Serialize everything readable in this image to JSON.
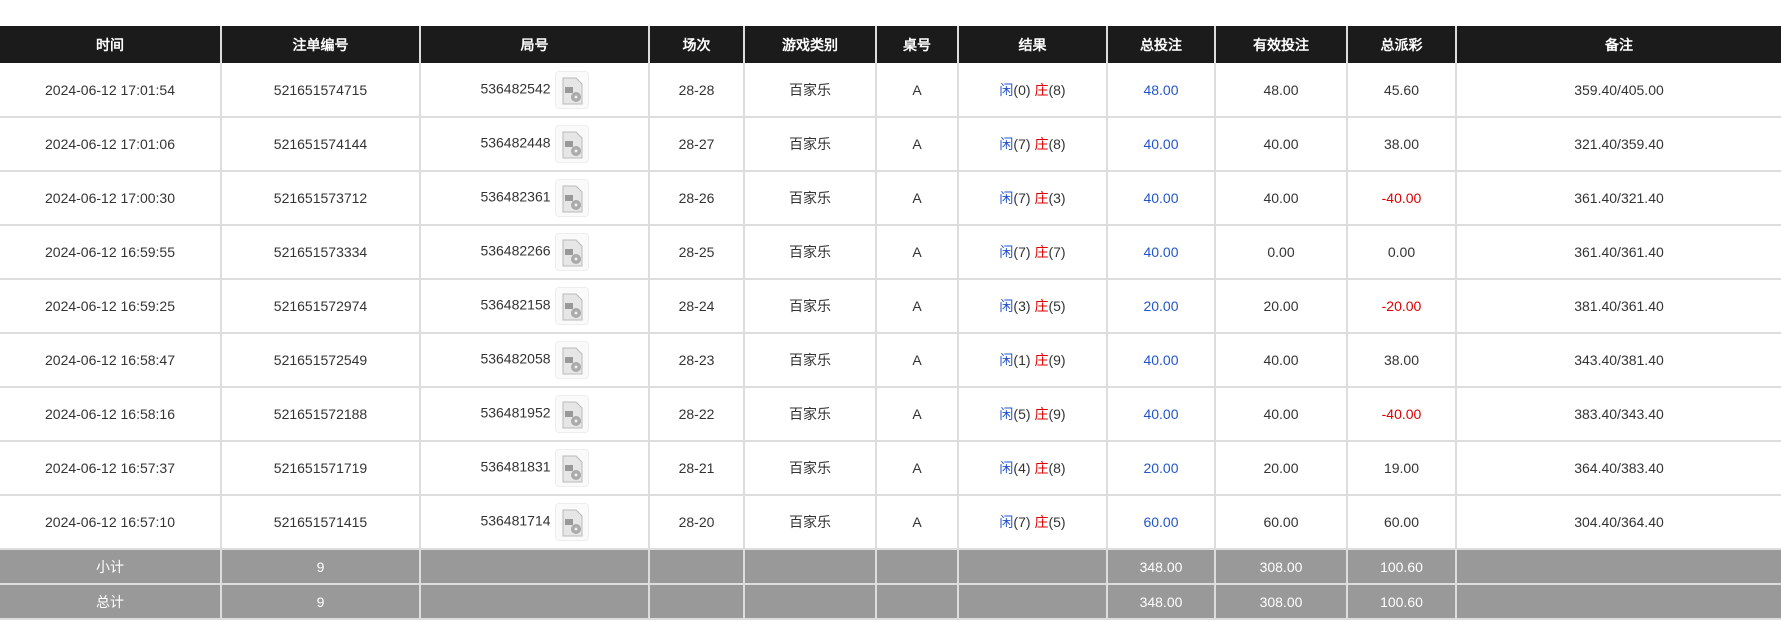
{
  "headers": [
    "时间",
    "注单编号",
    "局号",
    "场次",
    "游戏类别",
    "桌号",
    "结果",
    "总投注",
    "有效投注",
    "总派彩",
    "备注"
  ],
  "colors": {
    "header_bg": "#1b1b1b",
    "player": "#2255cc",
    "banker": "#dd0000",
    "summary_bg": "#999999"
  },
  "rows": [
    {
      "time": "2024-06-12 17:01:54",
      "bet_id": "521651574715",
      "round": "536482542",
      "shoe": "28-28",
      "game": "百家乐",
      "table": "A",
      "p_label": "闲",
      "p": "(0)",
      "b_label": "庄",
      "b": "(8)",
      "total": "48.00",
      "valid": "48.00",
      "payout": "45.60",
      "payout_neg": false,
      "note": "359.40/405.00"
    },
    {
      "time": "2024-06-12 17:01:06",
      "bet_id": "521651574144",
      "round": "536482448",
      "shoe": "28-27",
      "game": "百家乐",
      "table": "A",
      "p_label": "闲",
      "p": "(7)",
      "b_label": "庄",
      "b": "(8)",
      "total": "40.00",
      "valid": "40.00",
      "payout": "38.00",
      "payout_neg": false,
      "note": "321.40/359.40"
    },
    {
      "time": "2024-06-12 17:00:30",
      "bet_id": "521651573712",
      "round": "536482361",
      "shoe": "28-26",
      "game": "百家乐",
      "table": "A",
      "p_label": "闲",
      "p": "(7)",
      "b_label": "庄",
      "b": "(3)",
      "total": "40.00",
      "valid": "40.00",
      "payout": "-40.00",
      "payout_neg": true,
      "note": "361.40/321.40"
    },
    {
      "time": "2024-06-12 16:59:55",
      "bet_id": "521651573334",
      "round": "536482266",
      "shoe": "28-25",
      "game": "百家乐",
      "table": "A",
      "p_label": "闲",
      "p": "(7)",
      "b_label": "庄",
      "b": "(7)",
      "total": "40.00",
      "valid": "0.00",
      "payout": "0.00",
      "payout_neg": false,
      "note": "361.40/361.40"
    },
    {
      "time": "2024-06-12 16:59:25",
      "bet_id": "521651572974",
      "round": "536482158",
      "shoe": "28-24",
      "game": "百家乐",
      "table": "A",
      "p_label": "闲",
      "p": "(3)",
      "b_label": "庄",
      "b": "(5)",
      "total": "20.00",
      "valid": "20.00",
      "payout": "-20.00",
      "payout_neg": true,
      "note": "381.40/361.40"
    },
    {
      "time": "2024-06-12 16:58:47",
      "bet_id": "521651572549",
      "round": "536482058",
      "shoe": "28-23",
      "game": "百家乐",
      "table": "A",
      "p_label": "闲",
      "p": "(1)",
      "b_label": "庄",
      "b": "(9)",
      "total": "40.00",
      "valid": "40.00",
      "payout": "38.00",
      "payout_neg": false,
      "note": "343.40/381.40"
    },
    {
      "time": "2024-06-12 16:58:16",
      "bet_id": "521651572188",
      "round": "536481952",
      "shoe": "28-22",
      "game": "百家乐",
      "table": "A",
      "p_label": "闲",
      "p": "(5)",
      "b_label": "庄",
      "b": "(9)",
      "total": "40.00",
      "valid": "40.00",
      "payout": "-40.00",
      "payout_neg": true,
      "note": "383.40/343.40"
    },
    {
      "time": "2024-06-12 16:57:37",
      "bet_id": "521651571719",
      "round": "536481831",
      "shoe": "28-21",
      "game": "百家乐",
      "table": "A",
      "p_label": "闲",
      "p": "(4)",
      "b_label": "庄",
      "b": "(8)",
      "total": "20.00",
      "valid": "20.00",
      "payout": "19.00",
      "payout_neg": false,
      "note": "364.40/383.40"
    },
    {
      "time": "2024-06-12 16:57:10",
      "bet_id": "521651571415",
      "round": "536481714",
      "shoe": "28-20",
      "game": "百家乐",
      "table": "A",
      "p_label": "闲",
      "p": "(7)",
      "b_label": "庄",
      "b": "(5)",
      "total": "60.00",
      "valid": "60.00",
      "payout": "60.00",
      "payout_neg": false,
      "note": "304.40/364.40"
    }
  ],
  "summary": [
    {
      "label": "小计",
      "count": "9",
      "total": "348.00",
      "valid": "308.00",
      "payout": "100.60"
    },
    {
      "label": "总计",
      "count": "9",
      "total": "348.00",
      "valid": "308.00",
      "payout": "100.60"
    }
  ]
}
